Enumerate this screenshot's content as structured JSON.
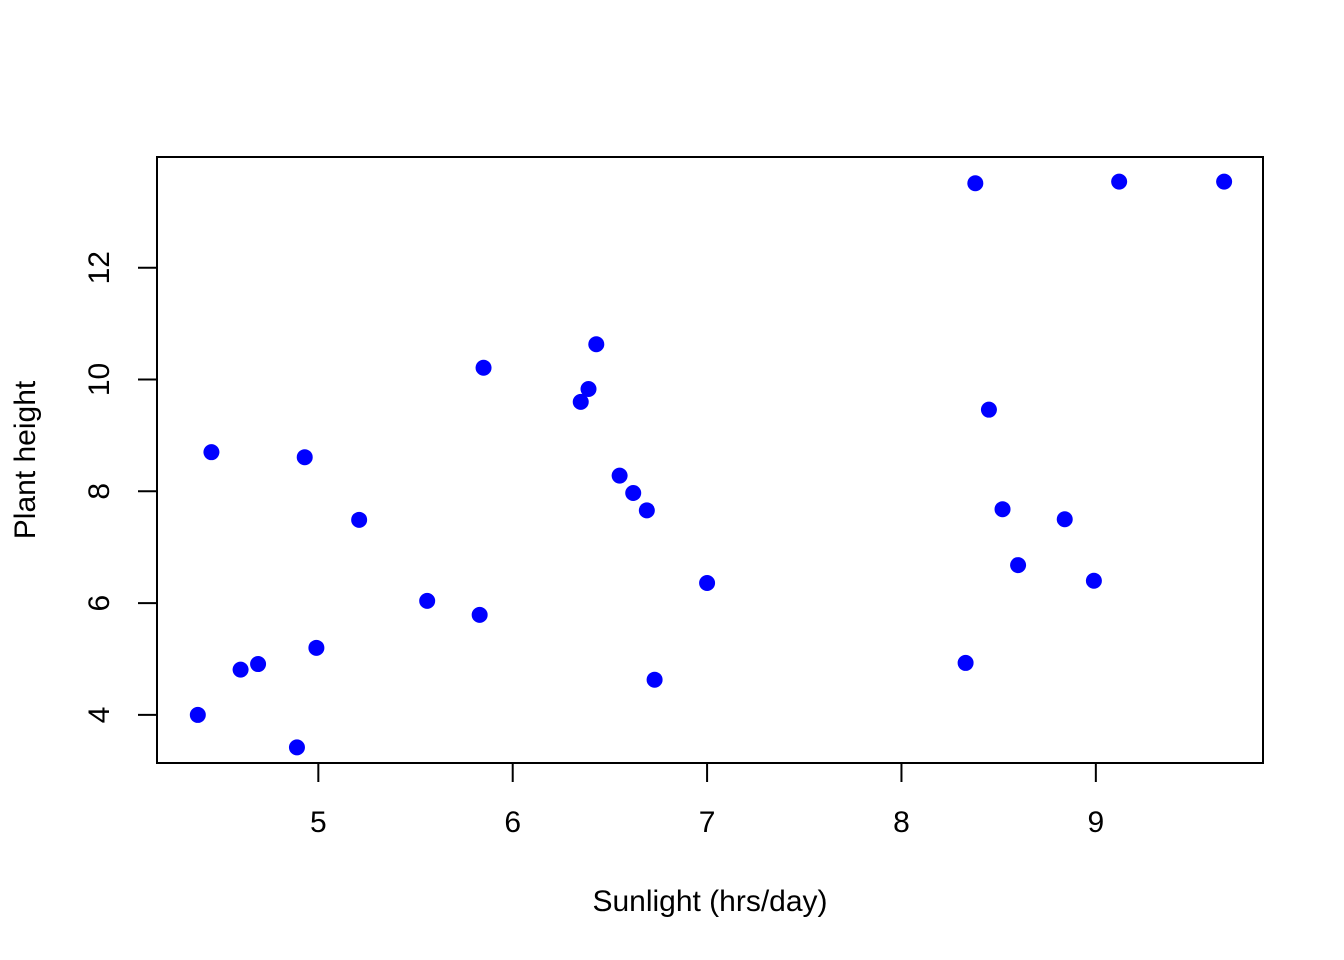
{
  "chart_data": {
    "type": "scatter",
    "title": "",
    "xlabel": "Sunlight (hrs/day)",
    "ylabel": "Plant height",
    "xlim": [
      4.17,
      9.86
    ],
    "ylim": [
      3.14,
      13.98
    ],
    "xticks": [
      5,
      6,
      7,
      8,
      9
    ],
    "yticks": [
      4,
      6,
      8,
      10,
      12
    ],
    "grid": false,
    "legend": "none",
    "point_color": "#0000ff",
    "series": [
      {
        "points": [
          {
            "x": 4.38,
            "y": 4.0
          },
          {
            "x": 4.45,
            "y": 8.7
          },
          {
            "x": 4.6,
            "y": 4.81
          },
          {
            "x": 4.69,
            "y": 4.91
          },
          {
            "x": 4.89,
            "y": 3.42
          },
          {
            "x": 4.93,
            "y": 8.61
          },
          {
            "x": 4.99,
            "y": 5.2
          },
          {
            "x": 5.21,
            "y": 7.49
          },
          {
            "x": 5.56,
            "y": 6.04
          },
          {
            "x": 5.83,
            "y": 5.79
          },
          {
            "x": 5.85,
            "y": 10.21
          },
          {
            "x": 6.35,
            "y": 9.6
          },
          {
            "x": 6.39,
            "y": 9.83
          },
          {
            "x": 6.43,
            "y": 10.63
          },
          {
            "x": 6.55,
            "y": 8.28
          },
          {
            "x": 6.62,
            "y": 7.97
          },
          {
            "x": 6.69,
            "y": 7.66
          },
          {
            "x": 6.73,
            "y": 4.63
          },
          {
            "x": 7.0,
            "y": 6.36
          },
          {
            "x": 8.33,
            "y": 4.93
          },
          {
            "x": 8.38,
            "y": 13.51
          },
          {
            "x": 8.45,
            "y": 9.46
          },
          {
            "x": 8.52,
            "y": 7.68
          },
          {
            "x": 8.6,
            "y": 6.68
          },
          {
            "x": 8.84,
            "y": 7.5
          },
          {
            "x": 8.99,
            "y": 6.4
          },
          {
            "x": 9.12,
            "y": 13.54
          },
          {
            "x": 9.66,
            "y": 13.54
          }
        ]
      }
    ]
  }
}
